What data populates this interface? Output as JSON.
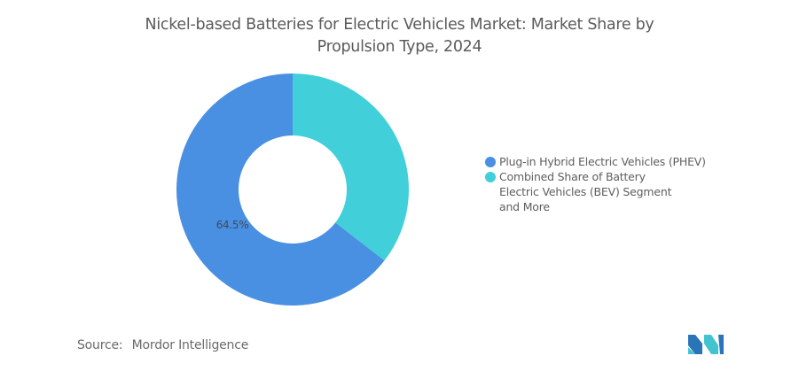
{
  "chart_data": {
    "type": "pie",
    "variant": "donut",
    "title": "Nickel-based Batteries for Electric Vehicles Market: Market Share by Propulsion Type, 2024",
    "title_lines": [
      "Nickel-based Batteries for Electric Vehicles Market: Market Share by",
      "Propulsion Type, 2024"
    ],
    "slices": [
      {
        "name": "Combined Share of Battery Electric Vehicles (BEV) Segment and More",
        "value": 35.5,
        "color": "#41d0d9",
        "label": ""
      },
      {
        "name": "Plug-in Hybrid Electric Vehicles (PHEV)",
        "value": 64.5,
        "color": "#4a90e2",
        "label": "64.5%"
      }
    ],
    "legend": {
      "placement": "right",
      "entries": [
        {
          "label": "Plug-in Hybrid Electric Vehicles (PHEV)",
          "color": "#4a90e2"
        },
        {
          "label": "Combined Share of Battery Electric Vehicles (BEV) Segment and More",
          "color": "#41d0d9"
        }
      ]
    }
  },
  "source": {
    "label": "Source:",
    "value": "Mordor Intelligence"
  },
  "logo": {
    "name": "mordor-intelligence-logo",
    "colors": [
      "#2a74b8",
      "#41c4d0"
    ]
  }
}
